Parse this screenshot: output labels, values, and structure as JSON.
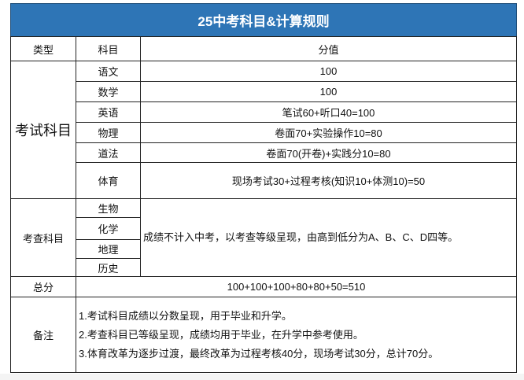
{
  "title": "25中考科目&计算规则",
  "header": {
    "type": "类型",
    "subject": "科目",
    "score": "分值"
  },
  "exam": {
    "type": "考试科目",
    "rows": [
      {
        "subject": "语文",
        "score": "100"
      },
      {
        "subject": "数学",
        "score": "100"
      },
      {
        "subject": "英语",
        "score": "笔试60+听口40=100"
      },
      {
        "subject": "物理",
        "score": "卷面70+实验操作10=80"
      },
      {
        "subject": "道法",
        "score": "卷面70(开卷)+实践分10=80"
      },
      {
        "subject": "体育",
        "score": "现场考试30+过程考核(知识10+体测10)=50"
      }
    ]
  },
  "check": {
    "type": "考查科目",
    "subjects": [
      "生物",
      "化学",
      "地理",
      "历史"
    ],
    "score": "成绩不计入中考，以考查等级呈现，由高到低分为A、B、C、D四等。"
  },
  "total": {
    "label": "总分",
    "value": "100+100+100+80+80+50=510"
  },
  "notes": {
    "label": "备注",
    "items": [
      "1.考试科目成绩以分数呈现，用于毕业和升学。",
      "2.考查科目已等级呈现，成绩均用于毕业，在升学中参考使用。",
      "3.体育改革为逐步过渡，最终改革为过程考核40分，现场考试30分，总计70分。"
    ]
  },
  "colors": {
    "title_bg": "#2e75b6",
    "title_text": "#ffffff"
  }
}
